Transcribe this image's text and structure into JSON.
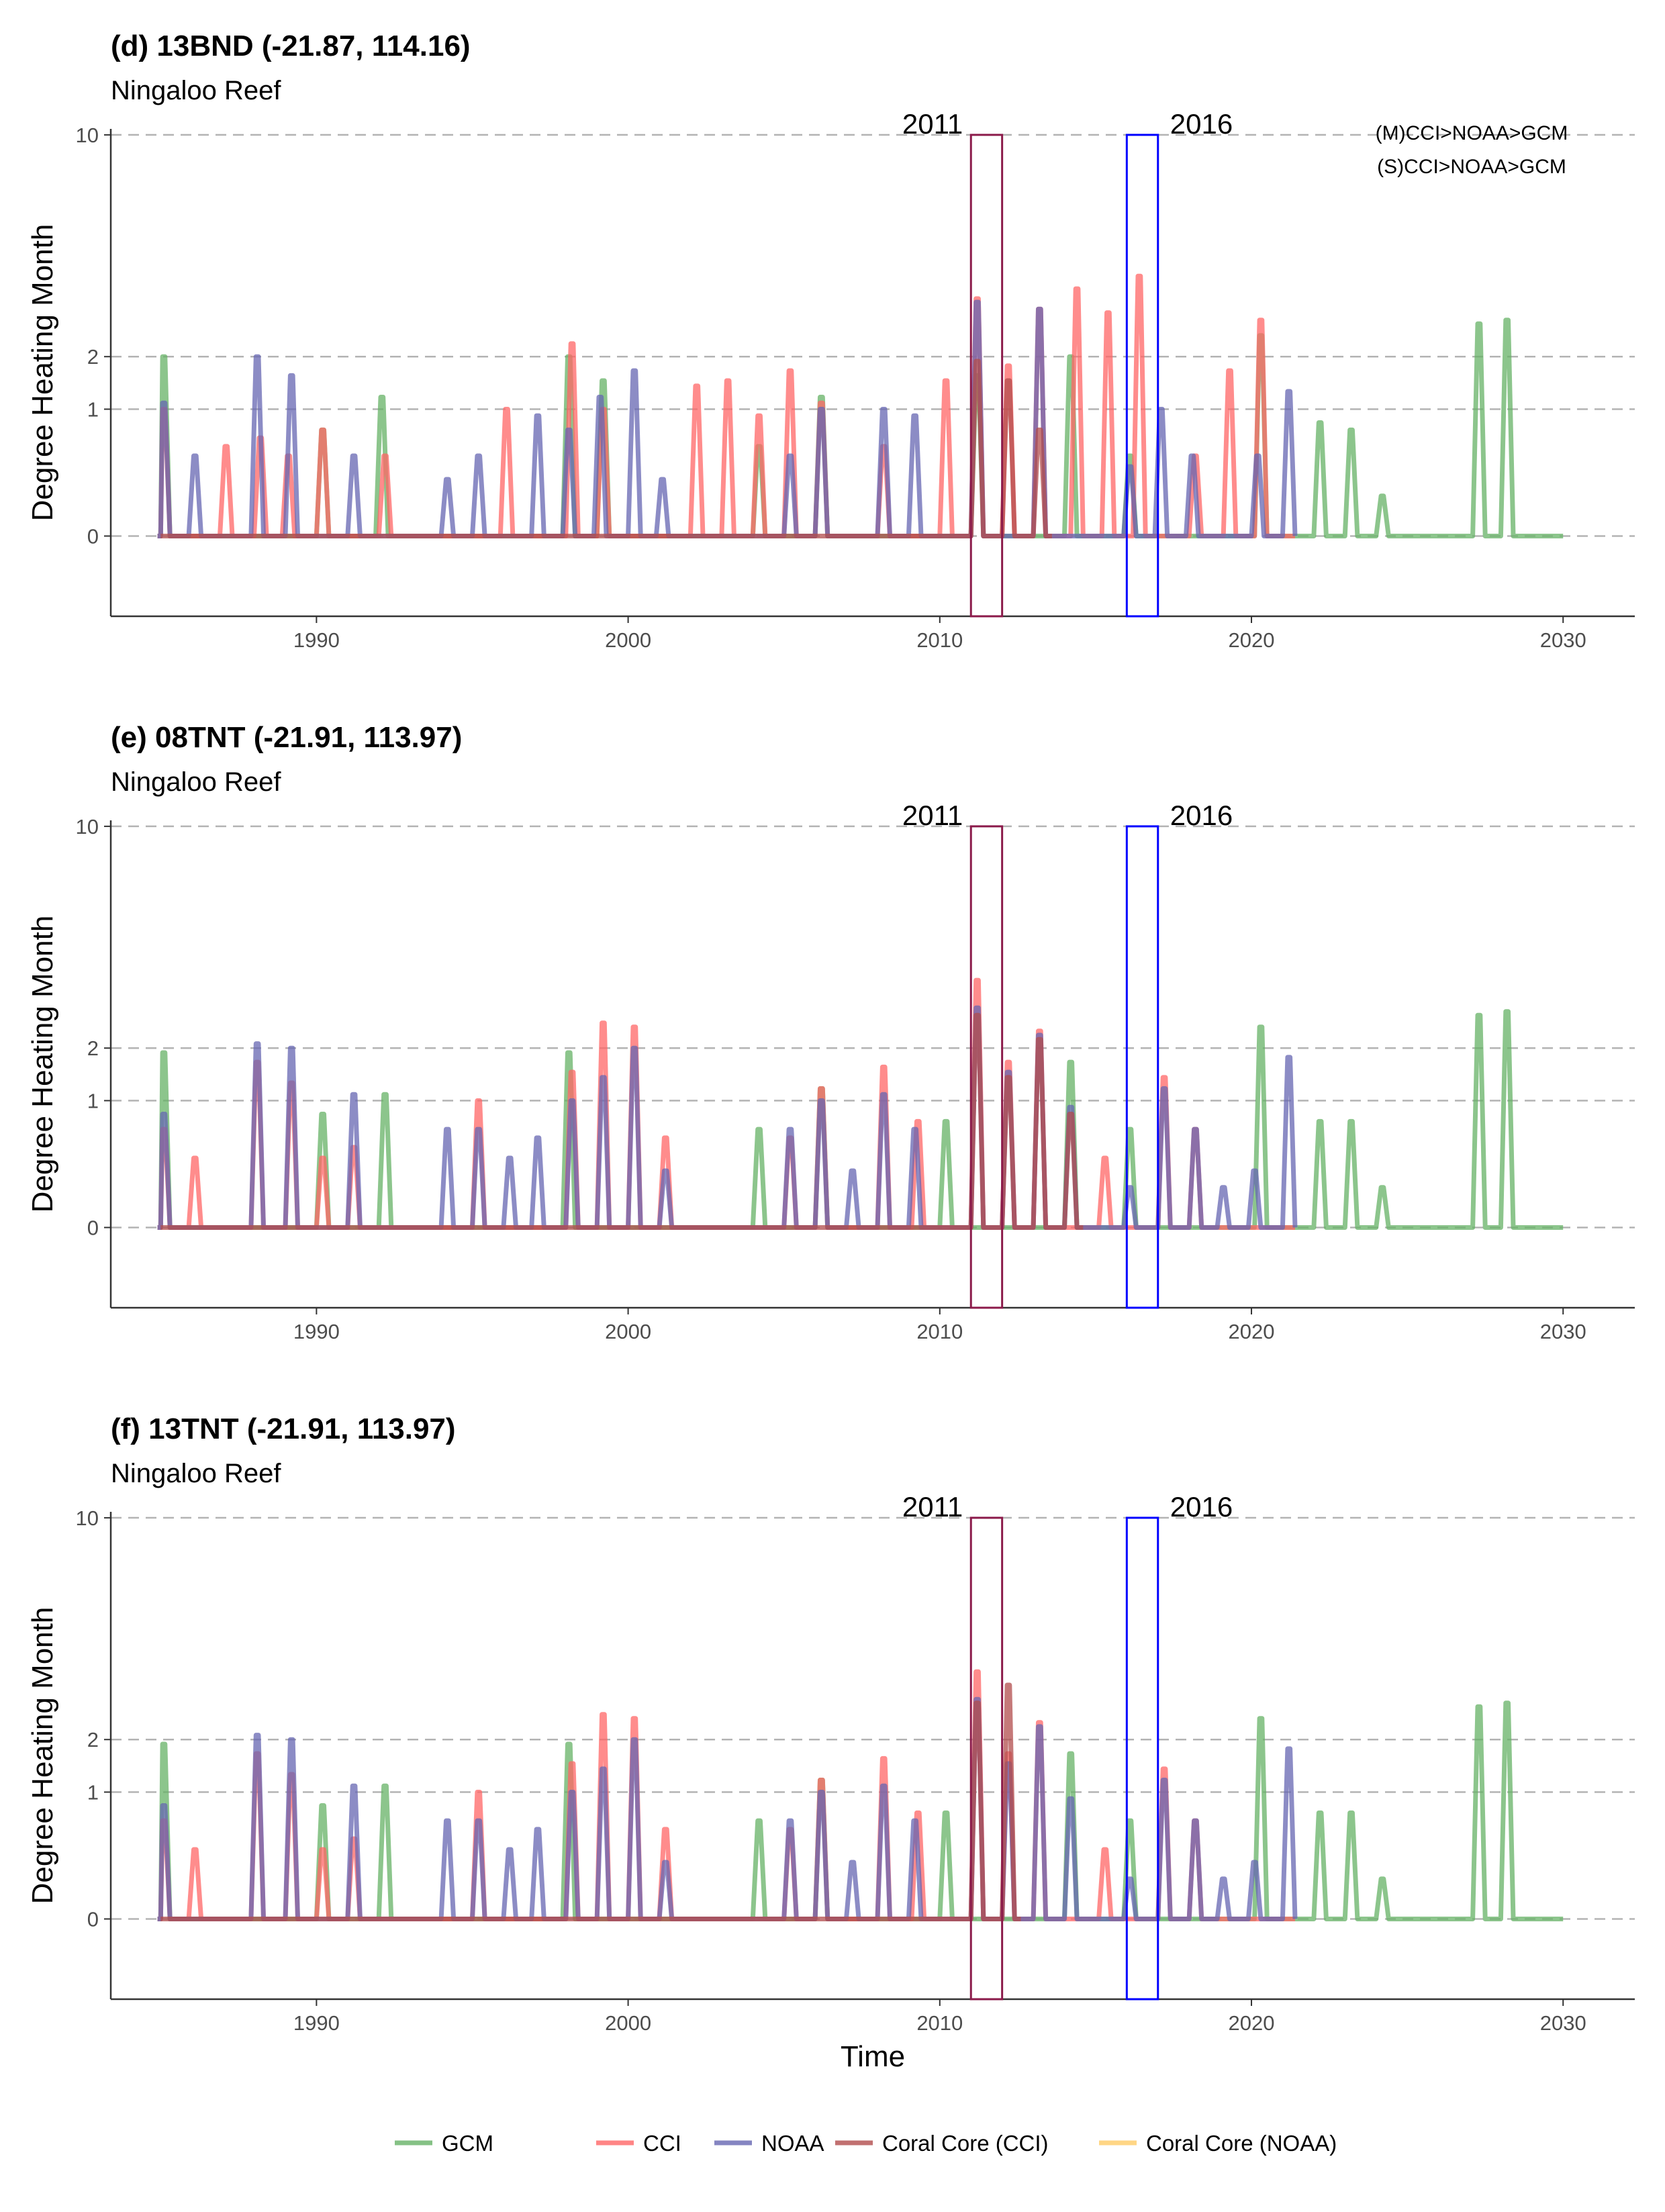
{
  "chart_data": [
    {
      "type": "line",
      "title": "(d) 13BND (-21.87, 114.16)",
      "subtitle": "Ningaloo Reef",
      "xlabel": "",
      "ylabel": "Degree Heating Month",
      "xlim": [
        1983.4,
        2032.3
      ],
      "ylim": [
        -0.4,
        10.3
      ],
      "y_scale": "sqrt",
      "x_ticks": [
        1990,
        2000,
        2010,
        2020,
        2030
      ],
      "y_ticks": [
        0,
        1,
        2,
        10
      ],
      "grid": "dashed horizontal at y ticks",
      "event_boxes": [
        {
          "label": "2011",
          "x_start": 2011,
          "x_end": 2012,
          "color": "#8b1a4a"
        },
        {
          "label": "2016",
          "x_start": 2016,
          "x_end": 2017,
          "color": "#0000ff"
        }
      ],
      "annotations": [
        "(M)CCI>NOAA>GCM",
        "(S)CCI>NOAA>GCM"
      ],
      "series": [
        {
          "name": "GCM",
          "color": "#66b266",
          "peaks": [
            [
              1985.1,
              2.0
            ],
            [
              1990.2,
              0.7
            ],
            [
              1992.1,
              1.2
            ],
            [
              1998.1,
              2.0
            ],
            [
              1999.2,
              1.5
            ],
            [
              2004.2,
              0.5
            ],
            [
              2006.2,
              1.2
            ],
            [
              2011.2,
              1.6
            ],
            [
              2014.2,
              2.0
            ],
            [
              2016.1,
              0.4
            ],
            [
              2020.3,
              2.5
            ],
            [
              2022.2,
              0.8
            ],
            [
              2023.2,
              0.7
            ],
            [
              2024.2,
              0.1
            ],
            [
              2027.3,
              2.8
            ],
            [
              2028.2,
              2.9
            ]
          ],
          "end": 2030.0
        },
        {
          "name": "CCI",
          "color": "#ff6666",
          "peaks": [
            [
              1985.1,
              1.0
            ],
            [
              1987.1,
              0.5
            ],
            [
              1988.2,
              0.6
            ],
            [
              1989.1,
              0.4
            ],
            [
              1990.2,
              0.7
            ],
            [
              1992.2,
              0.4
            ],
            [
              1996.1,
              1.0
            ],
            [
              1998.2,
              2.3
            ],
            [
              1999.2,
              1.0
            ],
            [
              2002.2,
              1.4
            ],
            [
              2003.2,
              1.5
            ],
            [
              2004.2,
              0.9
            ],
            [
              2005.2,
              1.7
            ],
            [
              2006.2,
              1.1
            ],
            [
              2008.2,
              0.5
            ],
            [
              2010.2,
              1.5
            ],
            [
              2011.2,
              3.5
            ],
            [
              2012.2,
              1.8
            ],
            [
              2013.2,
              3.2
            ],
            [
              2014.4,
              3.8
            ],
            [
              2015.4,
              3.1
            ],
            [
              2016.4,
              4.2
            ],
            [
              2018.2,
              0.4
            ],
            [
              2019.3,
              1.7
            ],
            [
              2020.3,
              2.9
            ]
          ],
          "end": 2021.4
        },
        {
          "name": "NOAA",
          "color": "#6666b2",
          "peaks": [
            [
              1985.1,
              1.1
            ],
            [
              1986.1,
              0.4
            ],
            [
              1988.1,
              2.0
            ],
            [
              1989.2,
              1.6
            ],
            [
              1991.2,
              0.4
            ],
            [
              1994.2,
              0.2
            ],
            [
              1995.2,
              0.4
            ],
            [
              1997.1,
              0.9
            ],
            [
              1998.1,
              0.7
            ],
            [
              1999.1,
              1.2
            ],
            [
              2000.2,
              1.7
            ],
            [
              2001.1,
              0.2
            ],
            [
              2005.2,
              0.4
            ],
            [
              2006.2,
              1.0
            ],
            [
              2008.2,
              1.0
            ],
            [
              2009.2,
              0.9
            ],
            [
              2011.2,
              3.4
            ],
            [
              2013.2,
              3.2
            ],
            [
              2016.1,
              0.3
            ],
            [
              2017.1,
              1.0
            ],
            [
              2018.1,
              0.4
            ],
            [
              2020.2,
              0.4
            ],
            [
              2021.2,
              1.3
            ]
          ],
          "end": 2021.4
        },
        {
          "name": "Coral Core (CCI)",
          "color": "#b24c4c",
          "peaks": [
            [
              2011.2,
              1.9
            ],
            [
              2012.2,
              1.5
            ],
            [
              2013.2,
              0.7
            ]
          ],
          "end": 2013.6
        },
        {
          "name": "Coral Core (NOAA)",
          "color": "#ffcc66",
          "peaks": [],
          "end": 1985.0
        }
      ]
    },
    {
      "type": "line",
      "title": "(e) 08TNT (-21.91, 113.97)",
      "subtitle": "Ningaloo Reef",
      "xlabel": "",
      "ylabel": "Degree Heating Month",
      "xlim": [
        1983.4,
        2032.3
      ],
      "ylim": [
        -0.4,
        10.3
      ],
      "y_scale": "sqrt",
      "x_ticks": [
        1990,
        2000,
        2010,
        2020,
        2030
      ],
      "y_ticks": [
        0,
        1,
        2,
        10
      ],
      "grid": "dashed horizontal at y ticks",
      "event_boxes": [
        {
          "label": "2011",
          "x_start": 2011,
          "x_end": 2012,
          "color": "#8b1a4a"
        },
        {
          "label": "2016",
          "x_start": 2016,
          "x_end": 2017,
          "color": "#0000ff"
        }
      ],
      "annotations": [],
      "series": [
        {
          "name": "GCM",
          "color": "#66b266",
          "peaks": [
            [
              1985.1,
              1.9
            ],
            [
              1990.2,
              0.8
            ],
            [
              1992.2,
              1.1
            ],
            [
              1998.1,
              1.9
            ],
            [
              2004.2,
              0.6
            ],
            [
              2006.2,
              1.2
            ],
            [
              2010.2,
              0.7
            ],
            [
              2014.2,
              1.7
            ],
            [
              2016.1,
              0.6
            ],
            [
              2020.3,
              2.5
            ],
            [
              2022.2,
              0.7
            ],
            [
              2023.2,
              0.7
            ],
            [
              2024.2,
              0.1
            ],
            [
              2027.3,
              2.8
            ],
            [
              2028.2,
              2.9
            ]
          ],
          "end": 2030.0
        },
        {
          "name": "CCI",
          "color": "#ff6666",
          "peaks": [
            [
              1985.1,
              0.6
            ],
            [
              1986.1,
              0.3
            ],
            [
              1988.1,
              1.7
            ],
            [
              1989.2,
              1.3
            ],
            [
              1990.2,
              0.3
            ],
            [
              1991.2,
              0.4
            ],
            [
              1995.2,
              1.0
            ],
            [
              1998.2,
              1.5
            ],
            [
              1999.2,
              2.6
            ],
            [
              2000.2,
              2.5
            ],
            [
              2001.2,
              0.5
            ],
            [
              2005.2,
              0.5
            ],
            [
              2006.2,
              1.2
            ],
            [
              2008.2,
              1.6
            ],
            [
              2009.3,
              0.7
            ],
            [
              2011.2,
              3.8
            ],
            [
              2012.2,
              1.7
            ],
            [
              2013.2,
              2.4
            ],
            [
              2015.3,
              0.3
            ],
            [
              2017.2,
              1.4
            ],
            [
              2018.2,
              0.6
            ]
          ],
          "end": 2021.4
        },
        {
          "name": "NOAA",
          "color": "#6666b2",
          "peaks": [
            [
              1985.1,
              0.8
            ],
            [
              1988.1,
              2.1
            ],
            [
              1989.2,
              2.0
            ],
            [
              1991.2,
              1.1
            ],
            [
              1994.2,
              0.6
            ],
            [
              1995.2,
              0.6
            ],
            [
              1996.2,
              0.3
            ],
            [
              1997.1,
              0.5
            ],
            [
              1998.2,
              1.0
            ],
            [
              1999.2,
              1.4
            ],
            [
              2000.2,
              2.0
            ],
            [
              2001.2,
              0.2
            ],
            [
              2005.2,
              0.6
            ],
            [
              2006.2,
              1.0
            ],
            [
              2007.2,
              0.2
            ],
            [
              2008.2,
              1.1
            ],
            [
              2009.2,
              0.6
            ],
            [
              2011.2,
              3.0
            ],
            [
              2012.2,
              1.5
            ],
            [
              2013.2,
              2.3
            ],
            [
              2014.2,
              0.9
            ],
            [
              2016.1,
              0.1
            ],
            [
              2017.2,
              1.2
            ],
            [
              2018.2,
              0.6
            ],
            [
              2019.1,
              0.1
            ],
            [
              2020.1,
              0.2
            ],
            [
              2021.2,
              1.8
            ]
          ],
          "end": 2021.4
        },
        {
          "name": "Coral Core (CCI)",
          "color": "#b24c4c",
          "peaks": [
            [
              2011.2,
              2.8
            ],
            [
              2012.2,
              1.4
            ],
            [
              2013.2,
              2.2
            ],
            [
              2014.2,
              0.8
            ]
          ],
          "end": 2014.6
        },
        {
          "name": "Coral Core (NOAA)",
          "color": "#ffcc66",
          "peaks": [],
          "end": 1985.0
        }
      ]
    },
    {
      "type": "line",
      "title": "(f) 13TNT (-21.91, 113.97)",
      "subtitle": "Ningaloo Reef",
      "xlabel": "Time",
      "ylabel": "Degree Heating Month",
      "xlim": [
        1983.4,
        2032.3
      ],
      "ylim": [
        -0.4,
        10.3
      ],
      "y_scale": "sqrt",
      "x_ticks": [
        1990,
        2000,
        2010,
        2020,
        2030
      ],
      "y_ticks": [
        0,
        1,
        2,
        10
      ],
      "grid": "dashed horizontal at y ticks",
      "event_boxes": [
        {
          "label": "2011",
          "x_start": 2011,
          "x_end": 2012,
          "color": "#8b1a4a"
        },
        {
          "label": "2016",
          "x_start": 2016,
          "x_end": 2017,
          "color": "#0000ff"
        }
      ],
      "annotations": [],
      "series": [
        {
          "name": "GCM",
          "color": "#66b266",
          "peaks": [
            [
              1985.1,
              1.9
            ],
            [
              1990.2,
              0.8
            ],
            [
              1992.2,
              1.1
            ],
            [
              1998.1,
              1.9
            ],
            [
              2004.2,
              0.6
            ],
            [
              2006.2,
              1.2
            ],
            [
              2010.2,
              0.7
            ],
            [
              2014.2,
              1.7
            ],
            [
              2016.1,
              0.6
            ],
            [
              2020.3,
              2.5
            ],
            [
              2022.2,
              0.7
            ],
            [
              2023.2,
              0.7
            ],
            [
              2024.2,
              0.1
            ],
            [
              2027.3,
              2.8
            ],
            [
              2028.2,
              2.9
            ]
          ],
          "end": 2030.0
        },
        {
          "name": "CCI",
          "color": "#ff6666",
          "peaks": [
            [
              1985.1,
              0.6
            ],
            [
              1986.1,
              0.3
            ],
            [
              1988.1,
              1.7
            ],
            [
              1989.2,
              1.3
            ],
            [
              1990.2,
              0.3
            ],
            [
              1991.2,
              0.4
            ],
            [
              1995.2,
              1.0
            ],
            [
              1998.2,
              1.5
            ],
            [
              1999.2,
              2.6
            ],
            [
              2000.2,
              2.5
            ],
            [
              2001.2,
              0.5
            ],
            [
              2005.2,
              0.5
            ],
            [
              2006.2,
              1.2
            ],
            [
              2008.2,
              1.6
            ],
            [
              2009.3,
              0.7
            ],
            [
              2011.2,
              3.8
            ],
            [
              2012.2,
              1.7
            ],
            [
              2013.2,
              2.4
            ],
            [
              2015.3,
              0.3
            ],
            [
              2017.2,
              1.4
            ],
            [
              2018.2,
              0.6
            ]
          ],
          "end": 2021.4
        },
        {
          "name": "NOAA",
          "color": "#6666b2",
          "peaks": [
            [
              1985.1,
              0.8
            ],
            [
              1988.1,
              2.1
            ],
            [
              1989.2,
              2.0
            ],
            [
              1991.2,
              1.1
            ],
            [
              1994.2,
              0.6
            ],
            [
              1995.2,
              0.6
            ],
            [
              1996.2,
              0.3
            ],
            [
              1997.1,
              0.5
            ],
            [
              1998.2,
              1.0
            ],
            [
              1999.2,
              1.4
            ],
            [
              2000.2,
              2.0
            ],
            [
              2001.2,
              0.2
            ],
            [
              2005.2,
              0.6
            ],
            [
              2006.2,
              1.0
            ],
            [
              2007.2,
              0.2
            ],
            [
              2008.2,
              1.1
            ],
            [
              2009.2,
              0.6
            ],
            [
              2011.2,
              3.0
            ],
            [
              2012.2,
              1.5
            ],
            [
              2013.2,
              2.3
            ],
            [
              2014.2,
              0.9
            ],
            [
              2016.1,
              0.1
            ],
            [
              2017.2,
              1.2
            ],
            [
              2018.2,
              0.6
            ],
            [
              2019.1,
              0.1
            ],
            [
              2020.1,
              0.2
            ],
            [
              2021.2,
              1.8
            ]
          ],
          "end": 2021.4
        },
        {
          "name": "Coral Core (CCI)",
          "color": "#b24c4c",
          "peaks": [
            [
              2011.2,
              2.9
            ],
            [
              2012.2,
              3.4
            ]
          ],
          "end": 2012.6
        },
        {
          "name": "Coral Core (NOAA)",
          "color": "#ffcc66",
          "peaks": [],
          "end": 1985.0
        }
      ]
    }
  ],
  "legend": {
    "position": "bottom",
    "items": [
      {
        "label": "GCM",
        "color": "#66b266"
      },
      {
        "label": "CCI",
        "color": "#ff6666"
      },
      {
        "label": "NOAA",
        "color": "#6666b2"
      },
      {
        "label": "Coral Core (CCI)",
        "color": "#b24c4c"
      },
      {
        "label": "Coral Core (NOAA)",
        "color": "#ffcc66"
      }
    ]
  }
}
